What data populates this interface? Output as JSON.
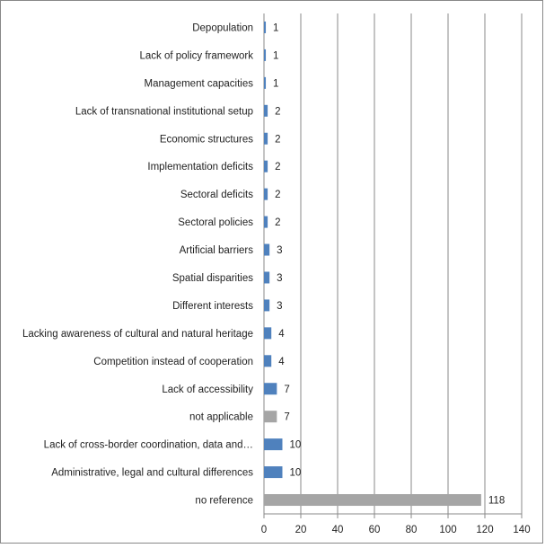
{
  "chart_data": {
    "type": "bar",
    "orientation": "horizontal",
    "categories": [
      "Depopulation",
      "Lack of policy framework",
      "Management capacities",
      "Lack of transnational institutional setup",
      "Economic structures",
      "Implementation deficits",
      "Sectoral deficits",
      "Sectoral policies",
      "Artificial barriers",
      "Spatial disparities",
      "Different interests",
      "Lacking awareness of cultural and natural heritage",
      "Competition instead of cooperation",
      "Lack of accessibility",
      "not applicable",
      "Lack of cross-border coordination, data and…",
      "Administrative, legal and cultural differences",
      "no reference"
    ],
    "values": [
      1,
      1,
      1,
      2,
      2,
      2,
      2,
      2,
      3,
      3,
      3,
      4,
      4,
      7,
      7,
      10,
      10,
      118
    ],
    "data_labels": [
      "1",
      "1",
      "1",
      "2",
      "2",
      "2",
      "2",
      "2",
      "3",
      "3",
      "3",
      "4",
      "4",
      "7",
      "7",
      "10",
      "10",
      "118"
    ],
    "bar_colors": [
      "#4f81bd",
      "#4f81bd",
      "#4f81bd",
      "#4f81bd",
      "#4f81bd",
      "#4f81bd",
      "#4f81bd",
      "#4f81bd",
      "#4f81bd",
      "#4f81bd",
      "#4f81bd",
      "#4f81bd",
      "#4f81bd",
      "#4f81bd",
      "#a5a5a5",
      "#4f81bd",
      "#4f81bd",
      "#a5a5a5"
    ],
    "xlim": [
      0,
      140
    ],
    "x_ticks": [
      0,
      20,
      40,
      60,
      80,
      100,
      120,
      140
    ],
    "x_tick_labels": [
      "0",
      "20",
      "40",
      "60",
      "80",
      "100",
      "120",
      "140"
    ],
    "title": "",
    "xlabel": "",
    "ylabel": "",
    "grid": "vertical",
    "legend": "none"
  },
  "colors": {
    "primary_bar": "#4f81bd",
    "gray_bar": "#a5a5a5",
    "gridline": "#888888"
  }
}
